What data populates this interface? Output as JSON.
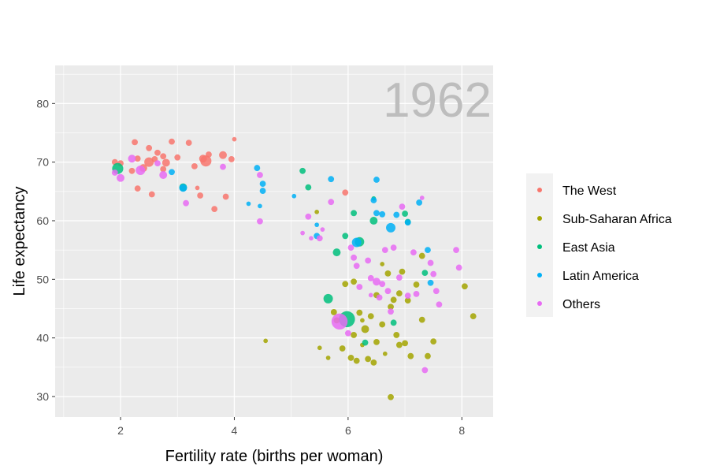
{
  "chart_data": {
    "type": "scatter",
    "title": "",
    "annotation": "1962",
    "xlabel": "Fertility rate (births per woman)",
    "ylabel": "Life expectancy",
    "xlim": [
      0.85,
      8.55
    ],
    "ylim": [
      26.5,
      86.5
    ],
    "x_ticks": [
      2,
      4,
      6,
      8
    ],
    "y_ticks": [
      30,
      40,
      50,
      60,
      70,
      80
    ],
    "grid": true,
    "legend_position": "right",
    "series": [
      {
        "name": "The West",
        "color": "#F8766D",
        "points": [
          {
            "x": 1.9,
            "y": 70.0,
            "s": 2
          },
          {
            "x": 2.0,
            "y": 69.8,
            "s": 2
          },
          {
            "x": 2.2,
            "y": 68.5,
            "s": 2
          },
          {
            "x": 2.25,
            "y": 73.4,
            "s": 2
          },
          {
            "x": 2.3,
            "y": 70.6,
            "s": 2
          },
          {
            "x": 2.4,
            "y": 69.0,
            "s": 3
          },
          {
            "x": 2.5,
            "y": 70.0,
            "s": 4
          },
          {
            "x": 2.5,
            "y": 72.4,
            "s": 2
          },
          {
            "x": 2.6,
            "y": 70.5,
            "s": 2
          },
          {
            "x": 2.65,
            "y": 71.6,
            "s": 2
          },
          {
            "x": 2.75,
            "y": 71.0,
            "s": 2
          },
          {
            "x": 2.8,
            "y": 69.9,
            "s": 3
          },
          {
            "x": 2.9,
            "y": 73.5,
            "s": 2
          },
          {
            "x": 3.0,
            "y": 70.8,
            "s": 2
          },
          {
            "x": 3.2,
            "y": 73.3,
            "s": 2
          },
          {
            "x": 3.3,
            "y": 69.3,
            "s": 2
          },
          {
            "x": 3.45,
            "y": 70.6,
            "s": 3
          },
          {
            "x": 3.5,
            "y": 70.2,
            "s": 5
          },
          {
            "x": 3.55,
            "y": 71.3,
            "s": 2
          },
          {
            "x": 3.8,
            "y": 71.2,
            "s": 3
          },
          {
            "x": 3.95,
            "y": 70.5,
            "s": 2
          },
          {
            "x": 4.0,
            "y": 73.9,
            "s": 1
          },
          {
            "x": 2.3,
            "y": 65.5,
            "s": 2
          },
          {
            "x": 2.55,
            "y": 64.5,
            "s": 2
          },
          {
            "x": 2.75,
            "y": 68.8,
            "s": 2
          },
          {
            "x": 3.4,
            "y": 64.3,
            "s": 2
          },
          {
            "x": 3.35,
            "y": 65.6,
            "s": 1
          },
          {
            "x": 3.65,
            "y": 62.0,
            "s": 2
          },
          {
            "x": 3.85,
            "y": 64.1,
            "s": 2
          },
          {
            "x": 5.95,
            "y": 64.8,
            "s": 2
          }
        ]
      },
      {
        "name": "Sub-Saharan Africa",
        "color": "#A3A500",
        "points": [
          {
            "x": 4.55,
            "y": 39.5,
            "s": 1
          },
          {
            "x": 5.5,
            "y": 38.3,
            "s": 1
          },
          {
            "x": 5.45,
            "y": 61.5,
            "s": 1
          },
          {
            "x": 5.65,
            "y": 36.6,
            "s": 1
          },
          {
            "x": 5.75,
            "y": 44.4,
            "s": 2
          },
          {
            "x": 5.8,
            "y": 43.0,
            "s": 2
          },
          {
            "x": 5.9,
            "y": 38.2,
            "s": 2
          },
          {
            "x": 5.95,
            "y": 49.2,
            "s": 2
          },
          {
            "x": 6.05,
            "y": 36.6,
            "s": 2
          },
          {
            "x": 6.1,
            "y": 49.6,
            "s": 2
          },
          {
            "x": 6.1,
            "y": 40.5,
            "s": 2
          },
          {
            "x": 6.15,
            "y": 36.1,
            "s": 2
          },
          {
            "x": 6.2,
            "y": 44.3,
            "s": 2
          },
          {
            "x": 6.25,
            "y": 43.0,
            "s": 1
          },
          {
            "x": 6.3,
            "y": 41.5,
            "s": 3
          },
          {
            "x": 6.35,
            "y": 36.4,
            "s": 2
          },
          {
            "x": 6.4,
            "y": 43.7,
            "s": 2
          },
          {
            "x": 6.45,
            "y": 35.8,
            "s": 2
          },
          {
            "x": 6.5,
            "y": 47.3,
            "s": 2
          },
          {
            "x": 6.6,
            "y": 42.3,
            "s": 2
          },
          {
            "x": 6.65,
            "y": 37.3,
            "s": 1
          },
          {
            "x": 6.7,
            "y": 51.0,
            "s": 2
          },
          {
            "x": 6.75,
            "y": 29.9,
            "s": 2
          },
          {
            "x": 6.8,
            "y": 46.5,
            "s": 2
          },
          {
            "x": 6.85,
            "y": 40.5,
            "s": 2
          },
          {
            "x": 6.9,
            "y": 38.8,
            "s": 2
          },
          {
            "x": 6.95,
            "y": 51.3,
            "s": 2
          },
          {
            "x": 7.0,
            "y": 39.1,
            "s": 2
          },
          {
            "x": 7.05,
            "y": 46.4,
            "s": 2
          },
          {
            "x": 7.1,
            "y": 36.9,
            "s": 2
          },
          {
            "x": 7.2,
            "y": 49.1,
            "s": 2
          },
          {
            "x": 7.3,
            "y": 43.1,
            "s": 2
          },
          {
            "x": 7.4,
            "y": 36.9,
            "s": 2
          },
          {
            "x": 7.5,
            "y": 39.4,
            "s": 2
          },
          {
            "x": 7.3,
            "y": 54.0,
            "s": 2
          },
          {
            "x": 8.05,
            "y": 48.8,
            "s": 2
          },
          {
            "x": 8.2,
            "y": 43.7,
            "s": 2
          },
          {
            "x": 6.5,
            "y": 39.3,
            "s": 2
          },
          {
            "x": 6.9,
            "y": 47.6,
            "s": 2
          },
          {
            "x": 6.75,
            "y": 45.3,
            "s": 2
          },
          {
            "x": 6.6,
            "y": 52.6,
            "s": 1
          },
          {
            "x": 6.25,
            "y": 38.8,
            "s": 1
          }
        ]
      },
      {
        "name": "East Asia",
        "color": "#00BF7D",
        "points": [
          {
            "x": 1.95,
            "y": 68.9,
            "s": 5
          },
          {
            "x": 3.1,
            "y": 65.7,
            "s": 3
          },
          {
            "x": 5.2,
            "y": 68.5,
            "s": 2
          },
          {
            "x": 5.3,
            "y": 65.7,
            "s": 2
          },
          {
            "x": 5.65,
            "y": 46.7,
            "s": 4
          },
          {
            "x": 5.8,
            "y": 54.6,
            "s": 3
          },
          {
            "x": 5.98,
            "y": 43.2,
            "s": 8
          },
          {
            "x": 6.1,
            "y": 61.3,
            "s": 2
          },
          {
            "x": 6.2,
            "y": 56.4,
            "s": 4
          },
          {
            "x": 6.45,
            "y": 63.8,
            "s": 1
          },
          {
            "x": 6.45,
            "y": 60.0,
            "s": 3
          },
          {
            "x": 6.3,
            "y": 39.2,
            "s": 2
          },
          {
            "x": 6.8,
            "y": 42.6,
            "s": 2
          },
          {
            "x": 7.0,
            "y": 61.2,
            "s": 2
          },
          {
            "x": 7.05,
            "y": 59.8,
            "s": 2
          },
          {
            "x": 7.35,
            "y": 51.1,
            "s": 2
          },
          {
            "x": 5.95,
            "y": 57.4,
            "s": 2
          }
        ]
      },
      {
        "name": "Latin America",
        "color": "#00B0F6",
        "points": [
          {
            "x": 2.9,
            "y": 68.3,
            "s": 2
          },
          {
            "x": 3.1,
            "y": 65.6,
            "s": 3
          },
          {
            "x": 4.25,
            "y": 62.9,
            "s": 1
          },
          {
            "x": 4.4,
            "y": 69.0,
            "s": 2
          },
          {
            "x": 4.45,
            "y": 62.5,
            "s": 1
          },
          {
            "x": 4.5,
            "y": 66.3,
            "s": 2
          },
          {
            "x": 4.5,
            "y": 65.1,
            "s": 2
          },
          {
            "x": 5.05,
            "y": 64.2,
            "s": 1
          },
          {
            "x": 5.45,
            "y": 59.3,
            "s": 1
          },
          {
            "x": 5.45,
            "y": 57.4,
            "s": 2
          },
          {
            "x": 5.7,
            "y": 67.1,
            "s": 2
          },
          {
            "x": 6.15,
            "y": 56.3,
            "s": 4
          },
          {
            "x": 6.45,
            "y": 63.5,
            "s": 2
          },
          {
            "x": 6.5,
            "y": 61.3,
            "s": 2
          },
          {
            "x": 6.5,
            "y": 67.0,
            "s": 2
          },
          {
            "x": 6.6,
            "y": 61.1,
            "s": 2
          },
          {
            "x": 6.75,
            "y": 58.8,
            "s": 4
          },
          {
            "x": 6.85,
            "y": 61.0,
            "s": 2
          },
          {
            "x": 7.05,
            "y": 59.7,
            "s": 2
          },
          {
            "x": 7.25,
            "y": 63.1,
            "s": 2
          },
          {
            "x": 7.4,
            "y": 55.0,
            "s": 2
          },
          {
            "x": 7.45,
            "y": 49.4,
            "s": 2
          }
        ]
      },
      {
        "name": "Others",
        "color": "#E76BF3",
        "points": [
          {
            "x": 1.9,
            "y": 68.2,
            "s": 2
          },
          {
            "x": 2.0,
            "y": 67.3,
            "s": 3
          },
          {
            "x": 2.2,
            "y": 70.6,
            "s": 3
          },
          {
            "x": 2.35,
            "y": 68.6,
            "s": 4
          },
          {
            "x": 2.65,
            "y": 69.8,
            "s": 2
          },
          {
            "x": 2.75,
            "y": 67.8,
            "s": 3
          },
          {
            "x": 3.15,
            "y": 63.0,
            "s": 2
          },
          {
            "x": 3.8,
            "y": 69.2,
            "s": 2
          },
          {
            "x": 4.45,
            "y": 59.9,
            "s": 2
          },
          {
            "x": 4.45,
            "y": 67.8,
            "s": 2
          },
          {
            "x": 5.2,
            "y": 57.9,
            "s": 1
          },
          {
            "x": 5.3,
            "y": 60.7,
            "s": 2
          },
          {
            "x": 5.35,
            "y": 57.0,
            "s": 1
          },
          {
            "x": 5.5,
            "y": 57.0,
            "s": 2
          },
          {
            "x": 5.55,
            "y": 58.5,
            "s": 1
          },
          {
            "x": 5.7,
            "y": 63.2,
            "s": 2
          },
          {
            "x": 5.85,
            "y": 42.8,
            "s": 8
          },
          {
            "x": 6.0,
            "y": 40.8,
            "s": 2
          },
          {
            "x": 6.05,
            "y": 55.4,
            "s": 2
          },
          {
            "x": 6.1,
            "y": 53.7,
            "s": 2
          },
          {
            "x": 6.15,
            "y": 52.3,
            "s": 2
          },
          {
            "x": 6.2,
            "y": 48.7,
            "s": 2
          },
          {
            "x": 6.35,
            "y": 53.2,
            "s": 2
          },
          {
            "x": 6.4,
            "y": 50.2,
            "s": 2
          },
          {
            "x": 6.5,
            "y": 49.6,
            "s": 3
          },
          {
            "x": 6.6,
            "y": 49.2,
            "s": 2
          },
          {
            "x": 6.65,
            "y": 55.0,
            "s": 2
          },
          {
            "x": 6.7,
            "y": 48.0,
            "s": 2
          },
          {
            "x": 6.75,
            "y": 44.5,
            "s": 2
          },
          {
            "x": 6.8,
            "y": 55.4,
            "s": 2
          },
          {
            "x": 6.9,
            "y": 50.3,
            "s": 2
          },
          {
            "x": 6.95,
            "y": 62.4,
            "s": 2
          },
          {
            "x": 7.05,
            "y": 47.2,
            "s": 2
          },
          {
            "x": 7.15,
            "y": 54.6,
            "s": 2
          },
          {
            "x": 7.2,
            "y": 47.5,
            "s": 2
          },
          {
            "x": 7.3,
            "y": 63.9,
            "s": 1
          },
          {
            "x": 7.35,
            "y": 34.5,
            "s": 2
          },
          {
            "x": 7.45,
            "y": 52.8,
            "s": 2
          },
          {
            "x": 7.5,
            "y": 50.9,
            "s": 2
          },
          {
            "x": 7.55,
            "y": 48.0,
            "s": 2
          },
          {
            "x": 7.9,
            "y": 55.0,
            "s": 2
          },
          {
            "x": 7.95,
            "y": 52.0,
            "s": 2
          },
          {
            "x": 7.6,
            "y": 45.7,
            "s": 2
          },
          {
            "x": 6.55,
            "y": 46.9,
            "s": 2
          },
          {
            "x": 6.4,
            "y": 47.3,
            "s": 1
          }
        ]
      }
    ]
  }
}
